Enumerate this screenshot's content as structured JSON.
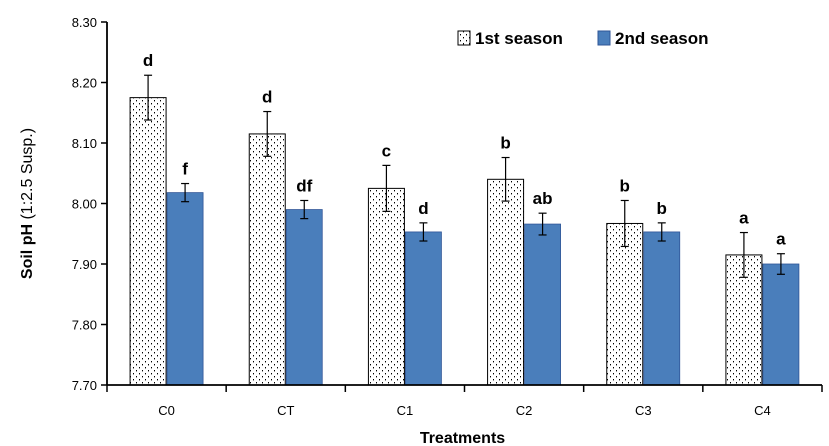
{
  "chart_data": {
    "type": "bar",
    "categories": [
      "C0",
      "CT",
      "C1",
      "C2",
      "C3",
      "C4"
    ],
    "series": [
      {
        "name": "1st season",
        "values": [
          8.175,
          8.115,
          8.025,
          8.04,
          7.967,
          7.915
        ],
        "errors": [
          0.037,
          0.037,
          0.038,
          0.036,
          0.038,
          0.037
        ],
        "labels": [
          "d",
          "d",
          "c",
          "b",
          "b",
          "a"
        ],
        "pattern": "dotted",
        "color": "#ffffff"
      },
      {
        "name": "2nd season",
        "values": [
          8.018,
          7.99,
          7.953,
          7.966,
          7.953,
          7.9
        ],
        "errors": [
          0.015,
          0.015,
          0.015,
          0.018,
          0.015,
          0.017
        ],
        "labels": [
          "f",
          "df",
          "d",
          "ab",
          "b",
          "a"
        ],
        "pattern": "solid",
        "color": "#4a7ebb"
      }
    ],
    "xlabel": "Treatments",
    "ylabel_bold": "Soil pH",
    "ylabel_rest": " (1:2.5 Susp.)",
    "ylim": [
      7.7,
      8.3
    ],
    "yticks": [
      "7.70",
      "7.80",
      "7.90",
      "8.00",
      "8.10",
      "8.20",
      "8.30"
    ],
    "grid": false,
    "legend_position": "top-right"
  }
}
